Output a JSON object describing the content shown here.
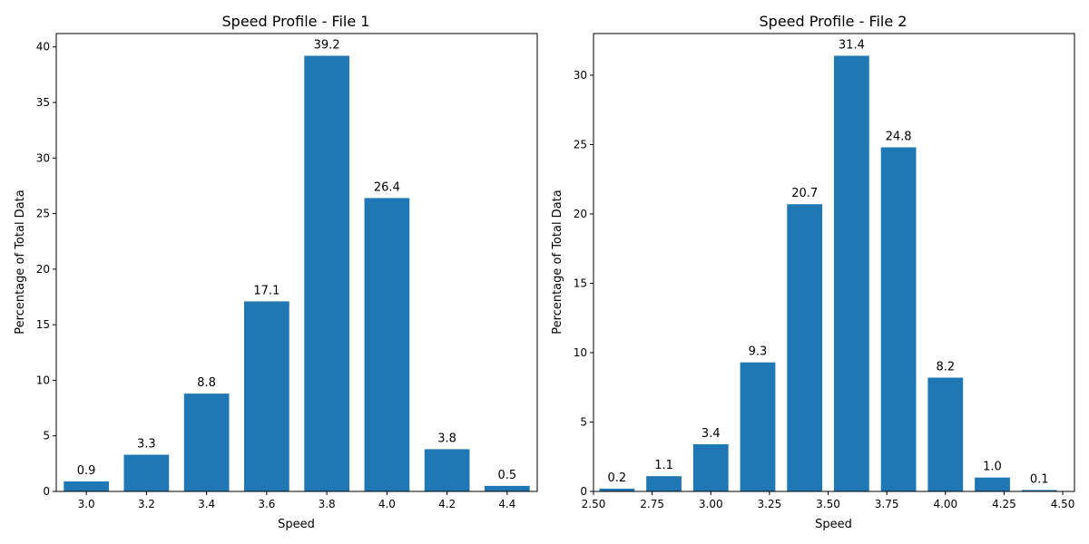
{
  "chart_data": [
    {
      "type": "bar",
      "title": "Speed Profile - File 1",
      "xlabel": "Speed",
      "ylabel": "Percentage of Total Data",
      "x": [
        3.0,
        3.2,
        3.4,
        3.6,
        3.8,
        4.0,
        4.2,
        4.4
      ],
      "values": [
        0.9,
        3.3,
        8.8,
        17.1,
        39.2,
        26.4,
        3.8,
        0.5
      ],
      "data_labels": [
        "0.9",
        "3.3",
        "8.8",
        "17.1",
        "39.2",
        "26.4",
        "3.8",
        "0.5"
      ],
      "bar_width": 0.15,
      "xlim": [
        2.9,
        4.5
      ],
      "ylim": [
        0,
        41.2
      ],
      "xticks": [
        3.0,
        3.2,
        3.4,
        3.6,
        3.8,
        4.0,
        4.2,
        4.4
      ],
      "xtick_labels": [
        "3.0",
        "3.2",
        "3.4",
        "3.6",
        "3.8",
        "4.0",
        "4.2",
        "4.4"
      ],
      "yticks": [
        0,
        5,
        10,
        15,
        20,
        25,
        30,
        35,
        40
      ],
      "ytick_labels": [
        "0",
        "5",
        "10",
        "15",
        "20",
        "25",
        "30",
        "35",
        "40"
      ],
      "grid": false,
      "color": "#1f77b4"
    },
    {
      "type": "bar",
      "title": "Speed Profile - File 2",
      "xlabel": "Speed",
      "ylabel": "Percentage of Total Data",
      "x": [
        2.6,
        2.8,
        3.0,
        3.2,
        3.4,
        3.6,
        3.8,
        4.0,
        4.2,
        4.4
      ],
      "values": [
        0.2,
        1.1,
        3.4,
        9.3,
        20.7,
        31.4,
        24.8,
        8.2,
        1.0,
        0.1
      ],
      "data_labels": [
        "0.2",
        "1.1",
        "3.4",
        "9.3",
        "20.7",
        "31.4",
        "24.8",
        "8.2",
        "1.0",
        "0.1"
      ],
      "bar_width": 0.15,
      "xlim": [
        2.5,
        4.55
      ],
      "ylim": [
        0,
        33
      ],
      "xticks": [
        2.5,
        2.75,
        3.0,
        3.25,
        3.5,
        3.75,
        4.0,
        4.25,
        4.5
      ],
      "xtick_labels": [
        "2.50",
        "2.75",
        "3.00",
        "3.25",
        "3.50",
        "3.75",
        "4.00",
        "4.25",
        "4.50"
      ],
      "yticks": [
        0,
        5,
        10,
        15,
        20,
        25,
        30
      ],
      "ytick_labels": [
        "0",
        "5",
        "10",
        "15",
        "20",
        "25",
        "30"
      ],
      "grid": false,
      "color": "#1f77b4"
    }
  ]
}
